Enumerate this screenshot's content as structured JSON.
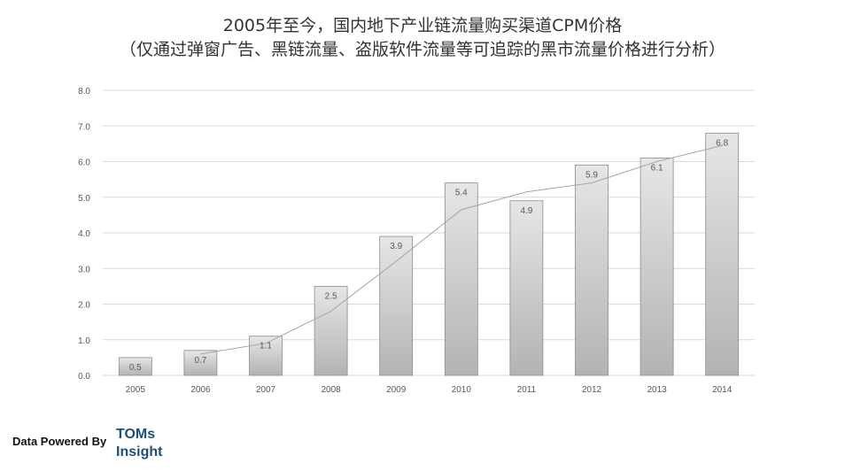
{
  "title": "2005年至今，国内地下产业链流量购买渠道CPM价格",
  "subtitle": "（仅通过弹窗广告、黑链流量、盗版软件流量等可追踪的黑市流量价格进行分析）",
  "footer": {
    "label": "Data Powered By",
    "logo_line1": "TOMs",
    "logo_line2": "Insight"
  },
  "chart_data": {
    "type": "bar",
    "title": "2005年至今，国内地下产业链流量购买渠道CPM价格",
    "subtitle": "（仅通过弹窗广告、黑链流量、盗版软件流量等可追踪的黑市流量价格进行分析）",
    "categories": [
      "2005",
      "2006",
      "2007",
      "2008",
      "2009",
      "2010",
      "2011",
      "2012",
      "2013",
      "2014"
    ],
    "values": [
      0.5,
      0.7,
      1.1,
      2.5,
      3.9,
      5.4,
      4.9,
      5.9,
      6.1,
      6.8
    ],
    "data_labels": [
      "0.5",
      "0.7",
      "1.1",
      "2.5",
      "3.9",
      "5.4",
      "4.9",
      "5.9",
      "6.1",
      "6.8"
    ],
    "trendline": {
      "type": "moving-average",
      "period": 2,
      "color": "#a6a6a6"
    },
    "ylim": [
      0,
      8
    ],
    "yticks": [
      "0.0",
      "1.0",
      "2.0",
      "3.0",
      "4.0",
      "5.0",
      "6.0",
      "7.0",
      "8.0"
    ],
    "grid": true,
    "legend": "none",
    "colors": {
      "bar_top": "#e6e6e6",
      "bar_bottom": "#b3b3b3",
      "bar_border": "#8c8c8c",
      "grid": "#d9d9d9",
      "text": "#595959"
    }
  }
}
